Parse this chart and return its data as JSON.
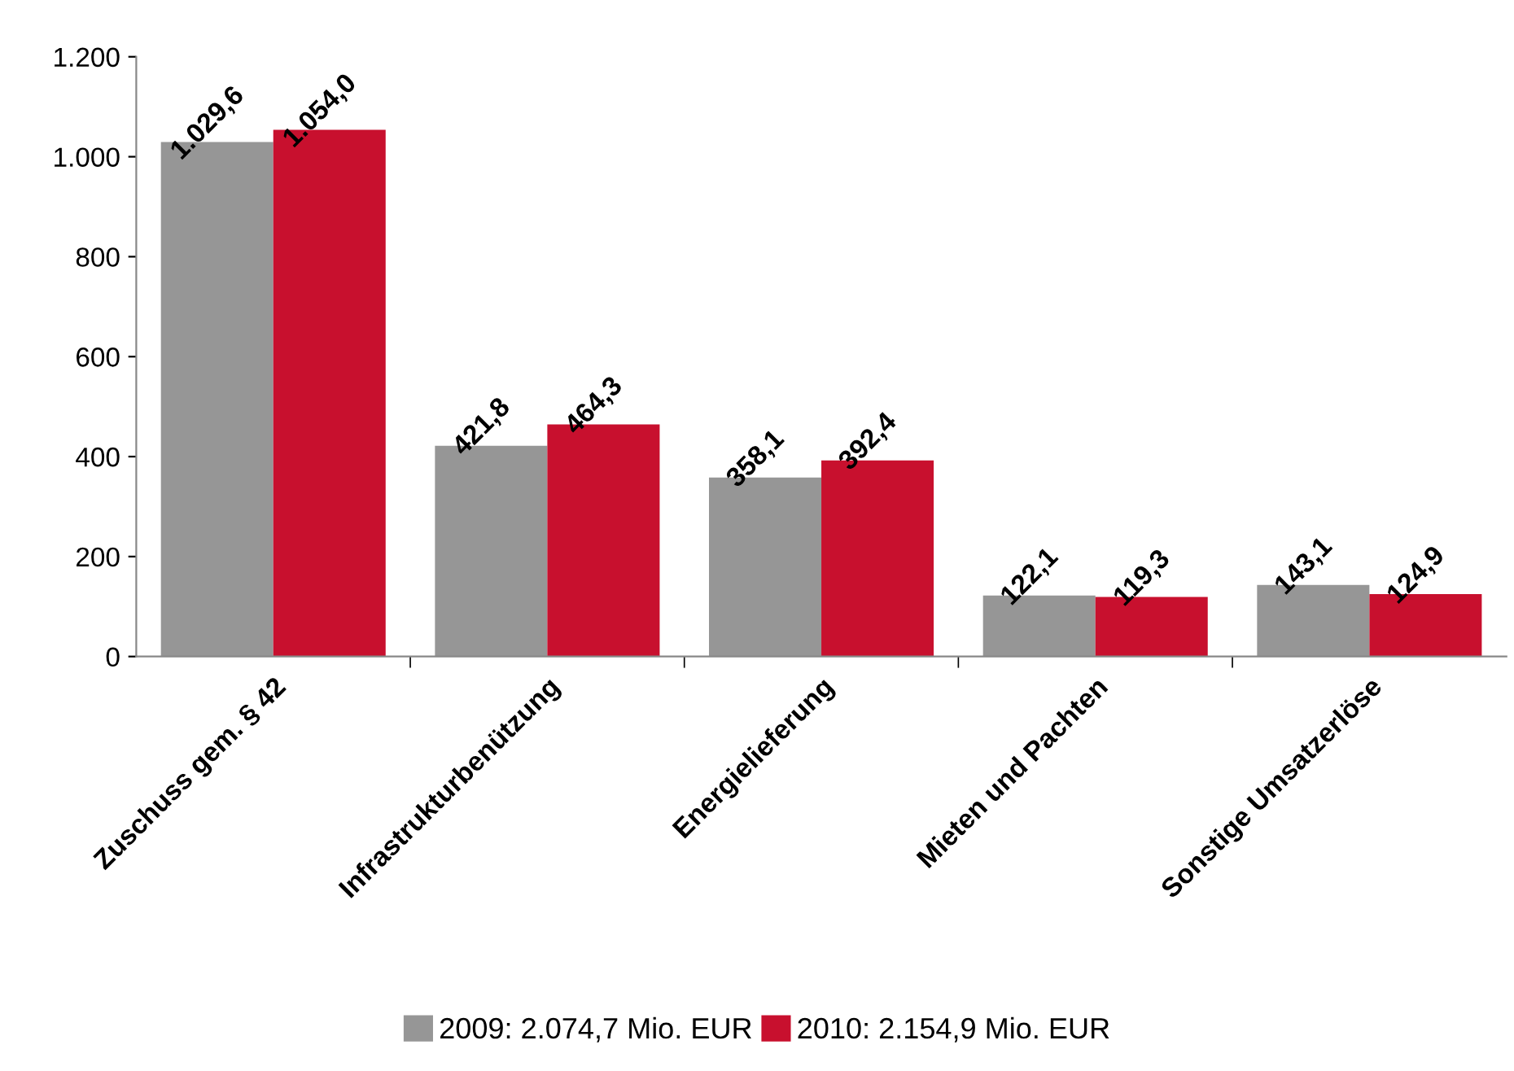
{
  "chart_data": {
    "type": "bar",
    "categories": [
      "Zuschuss gem. § 42",
      "Infrastrukturbenützung",
      "Energielieferung",
      "Mieten und Pachten",
      "Sonstige Umsatzerlöse"
    ],
    "series": [
      {
        "name": "2009: 2.074,7 Mio. EUR",
        "color": "#969696",
        "values": [
          1029.6,
          421.8,
          358.1,
          122.1,
          143.1
        ],
        "value_labels": [
          "1.029,6",
          "421,8",
          "358,1",
          "122,1",
          "143,1"
        ]
      },
      {
        "name": "2010: 2.154,9 Mio. EUR",
        "color": "#c8102e",
        "values": [
          1054.0,
          464.3,
          392.4,
          119.3,
          124.9
        ],
        "value_labels": [
          "1.054,0",
          "464,3",
          "392,4",
          "119,3",
          "124,9"
        ]
      }
    ],
    "ylim": [
      0,
      1200
    ],
    "yticks": [
      0,
      200,
      400,
      600,
      800,
      {
        "value": 1000,
        "label": "1.000"
      },
      {
        "value": 1200,
        "label": "1.200"
      }
    ],
    "grid": false,
    "legend": "bottom"
  }
}
